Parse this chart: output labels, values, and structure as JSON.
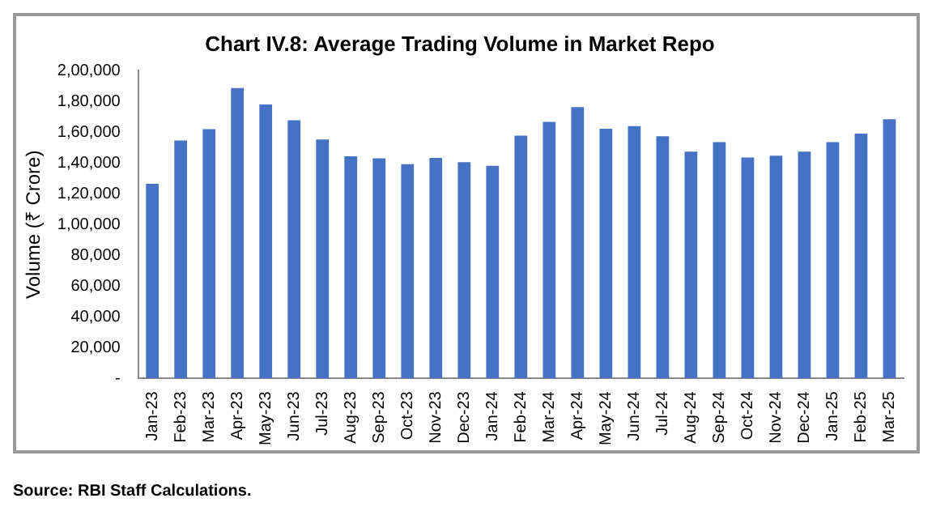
{
  "chart_data": {
    "type": "bar",
    "title": "Chart IV.8: Average Trading Volume in Market Repo",
    "ylabel": "Volume (₹ Crore)",
    "categories": [
      "Jan-23",
      "Feb-23",
      "Mar-23",
      "Apr-23",
      "May-23",
      "Jun-23",
      "Jul-23",
      "Aug-23",
      "Sep-23",
      "Oct-23",
      "Nov-23",
      "Dec-23",
      "Jan-24",
      "Feb-24",
      "Mar-24",
      "Apr-24",
      "May-24",
      "Jun-24",
      "Jul-24",
      "Aug-24",
      "Sep-24",
      "Oct-24",
      "Nov-24",
      "Dec-24",
      "Jan-25",
      "Feb-25",
      "Mar-25"
    ],
    "values": [
      126500,
      154600,
      161900,
      188700,
      178000,
      167700,
      155300,
      144300,
      143000,
      139200,
      143300,
      140500,
      138100,
      157700,
      166700,
      176300,
      162200,
      163900,
      157400,
      147400,
      153600,
      143600,
      144700,
      147400,
      153600,
      159100,
      168400
    ],
    "color": "#4472c4",
    "ylim": [
      0,
      200000
    ],
    "yticks": [
      {
        "value": 0,
        "label": "-"
      },
      {
        "value": 20000,
        "label": "20,000"
      },
      {
        "value": 40000,
        "label": "40,000"
      },
      {
        "value": 60000,
        "label": "60,000"
      },
      {
        "value": 80000,
        "label": "80,000"
      },
      {
        "value": 100000,
        "label": "1,00,000"
      },
      {
        "value": 120000,
        "label": "1,20,000"
      },
      {
        "value": 140000,
        "label": "1,40,000"
      },
      {
        "value": 160000,
        "label": "1,60,000"
      },
      {
        "value": 180000,
        "label": "1,80,000"
      },
      {
        "value": 200000,
        "label": "2,00,000"
      }
    ],
    "grid": false,
    "legend": false,
    "annotations": [
      "Source: RBI Staff Calculations."
    ]
  }
}
